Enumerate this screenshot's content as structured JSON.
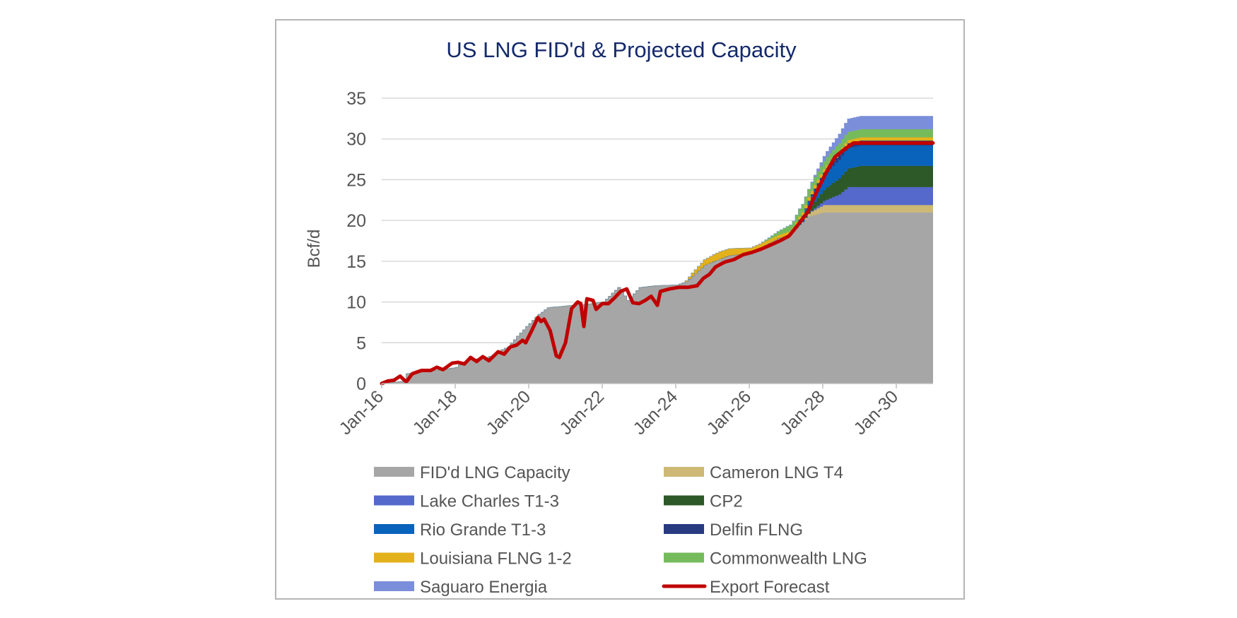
{
  "chart_data": {
    "type": "area",
    "title": "US LNG FID'd & Projected Capacity",
    "xlabel": "",
    "ylabel": "Bcf/d",
    "ylim": [
      0,
      35
    ],
    "yticks": [
      0,
      5,
      10,
      15,
      20,
      25,
      30,
      35
    ],
    "xlim": [
      "2016-01",
      "2031-01"
    ],
    "xtick_labels": [
      "Jan-16",
      "Jan-18",
      "Jan-20",
      "Jan-22",
      "Jan-24",
      "Jan-26",
      "Jan-28",
      "Jan-30"
    ],
    "grid": true,
    "legend_position": "bottom",
    "stacked_series": [
      {
        "name": "FID'd LNG Capacity",
        "color": "#a6a6a6",
        "points": [
          [
            "2016-01",
            0
          ],
          [
            "2016-08",
            0.3
          ],
          [
            "2016-09",
            1.2
          ],
          [
            "2017-03",
            1.5
          ],
          [
            "2017-09",
            1.7
          ],
          [
            "2018-01",
            2.0
          ],
          [
            "2018-03",
            2.6
          ],
          [
            "2018-07",
            3.0
          ],
          [
            "2018-11",
            3.2
          ],
          [
            "2019-01",
            3.5
          ],
          [
            "2019-03",
            4.0
          ],
          [
            "2019-06",
            4.5
          ],
          [
            "2019-09",
            5.8
          ],
          [
            "2019-12",
            7.0
          ],
          [
            "2020-04",
            8.5
          ],
          [
            "2020-07",
            9.3
          ],
          [
            "2020-12",
            9.5
          ],
          [
            "2021-07",
            9.7
          ],
          [
            "2022-01",
            10.0
          ],
          [
            "2022-06",
            11.8
          ],
          [
            "2022-09",
            10.2
          ],
          [
            "2023-01",
            11.8
          ],
          [
            "2023-06",
            12.0
          ],
          [
            "2024-01",
            12.1
          ],
          [
            "2024-04",
            12.5
          ],
          [
            "2024-07",
            13.5
          ],
          [
            "2024-10",
            14.5
          ],
          [
            "2025-01",
            15.0
          ],
          [
            "2025-06",
            15.7
          ],
          [
            "2026-01",
            16.0
          ],
          [
            "2026-06",
            17.0
          ],
          [
            "2026-10",
            17.8
          ],
          [
            "2027-02",
            18.3
          ],
          [
            "2027-05",
            19.5
          ],
          [
            "2027-08",
            20.5
          ],
          [
            "2028-01",
            21.0
          ],
          [
            "2031-01",
            21.0
          ]
        ]
      },
      {
        "name": "Cameron LNG T4",
        "color": "#cdb876",
        "points": [
          [
            "2016-01",
            0
          ],
          [
            "2027-06",
            0
          ],
          [
            "2027-09",
            0.5
          ],
          [
            "2028-01",
            0.9
          ],
          [
            "2031-01",
            0.9
          ]
        ]
      },
      {
        "name": "Lake Charles T1-3",
        "color": "#5568cc",
        "points": [
          [
            "2016-01",
            0
          ],
          [
            "2027-08",
            0
          ],
          [
            "2028-01",
            0.5
          ],
          [
            "2028-06",
            1.3
          ],
          [
            "2028-09",
            2.2
          ],
          [
            "2031-01",
            2.2
          ]
        ]
      },
      {
        "name": "CP2",
        "color": "#2d5828",
        "points": [
          [
            "2016-01",
            0
          ],
          [
            "2027-06",
            0
          ],
          [
            "2027-10",
            0.8
          ],
          [
            "2028-02",
            1.5
          ],
          [
            "2028-08",
            2.2
          ],
          [
            "2029-01",
            2.6
          ],
          [
            "2031-01",
            2.6
          ]
        ]
      },
      {
        "name": "Rio Grande T1-3",
        "color": "#0a63bb",
        "points": [
          [
            "2016-01",
            0
          ],
          [
            "2027-03",
            0
          ],
          [
            "2027-05",
            0.6
          ],
          [
            "2027-10",
            1.4
          ],
          [
            "2028-03",
            2.0
          ],
          [
            "2028-08",
            2.5
          ],
          [
            "2031-01",
            2.5
          ]
        ]
      },
      {
        "name": "Delfin FLNG",
        "color": "#283a80",
        "points": [
          [
            "2016-01",
            0
          ],
          [
            "2027-06",
            0
          ],
          [
            "2027-11",
            0.3
          ],
          [
            "2028-05",
            0.6
          ],
          [
            "2031-01",
            0.6
          ]
        ]
      },
      {
        "name": "Louisiana FLNG 1-2",
        "color": "#e3b11b",
        "points": [
          [
            "2016-01",
            0
          ],
          [
            "2024-03",
            0
          ],
          [
            "2024-06",
            0.4
          ],
          [
            "2024-10",
            0.7
          ],
          [
            "2025-03",
            0.9
          ],
          [
            "2025-08",
            0.8
          ],
          [
            "2026-05",
            0.5
          ],
          [
            "2026-10",
            0.4
          ],
          [
            "2027-06",
            0.4
          ],
          [
            "2031-01",
            0.4
          ]
        ]
      },
      {
        "name": "Commonwealth LNG",
        "color": "#75bb5c",
        "points": [
          [
            "2016-01",
            0
          ],
          [
            "2026-04",
            0
          ],
          [
            "2026-08",
            0.3
          ],
          [
            "2027-01",
            0.7
          ],
          [
            "2027-06",
            1.0
          ],
          [
            "2027-10",
            1.0
          ],
          [
            "2031-01",
            1.0
          ]
        ]
      },
      {
        "name": "Saguaro Energia",
        "color": "#7a8ed9",
        "points": [
          [
            "2016-01",
            0
          ],
          [
            "2027-08",
            0
          ],
          [
            "2028-01",
            0.6
          ],
          [
            "2028-05",
            1.0
          ],
          [
            "2028-09",
            1.6
          ],
          [
            "2031-01",
            1.6
          ]
        ]
      }
    ],
    "line_series": {
      "name": "Export Forecast",
      "color": "#c00000",
      "points": [
        [
          "2016-01",
          0.0
        ],
        [
          "2016-03",
          0.3
        ],
        [
          "2016-05",
          0.4
        ],
        [
          "2016-07",
          0.9
        ],
        [
          "2016-09",
          0.2
        ],
        [
          "2016-11",
          1.2
        ],
        [
          "2017-02",
          1.6
        ],
        [
          "2017-05",
          1.6
        ],
        [
          "2017-07",
          2.0
        ],
        [
          "2017-09",
          1.7
        ],
        [
          "2017-12",
          2.5
        ],
        [
          "2018-02",
          2.6
        ],
        [
          "2018-04",
          2.4
        ],
        [
          "2018-06",
          3.2
        ],
        [
          "2018-08",
          2.7
        ],
        [
          "2018-10",
          3.3
        ],
        [
          "2018-12",
          2.8
        ],
        [
          "2019-03",
          3.9
        ],
        [
          "2019-05",
          3.6
        ],
        [
          "2019-07",
          4.5
        ],
        [
          "2019-09",
          4.7
        ],
        [
          "2019-11",
          5.3
        ],
        [
          "2019-12",
          5.0
        ],
        [
          "2020-02",
          6.5
        ],
        [
          "2020-04",
          8.1
        ],
        [
          "2020-05",
          7.6
        ],
        [
          "2020-06",
          7.9
        ],
        [
          "2020-08",
          6.5
        ],
        [
          "2020-10",
          3.4
        ],
        [
          "2020-11",
          3.2
        ],
        [
          "2021-01",
          5.0
        ],
        [
          "2021-03",
          9.2
        ],
        [
          "2021-05",
          10.0
        ],
        [
          "2021-06",
          9.8
        ],
        [
          "2021-07",
          7.0
        ],
        [
          "2021-08",
          10.4
        ],
        [
          "2021-10",
          10.2
        ],
        [
          "2021-11",
          9.1
        ],
        [
          "2022-01",
          9.8
        ],
        [
          "2022-03",
          9.8
        ],
        [
          "2022-05",
          10.5
        ],
        [
          "2022-07",
          11.3
        ],
        [
          "2022-09",
          11.6
        ],
        [
          "2022-11",
          9.9
        ],
        [
          "2023-01",
          9.8
        ],
        [
          "2023-03",
          10.2
        ],
        [
          "2023-05",
          10.7
        ],
        [
          "2023-07",
          9.6
        ],
        [
          "2023-08",
          11.3
        ],
        [
          "2023-11",
          11.6
        ],
        [
          "2024-02",
          11.8
        ],
        [
          "2024-05",
          11.8
        ],
        [
          "2024-08",
          12.0
        ],
        [
          "2024-10",
          12.9
        ],
        [
          "2024-12",
          13.4
        ],
        [
          "2025-02",
          14.3
        ],
        [
          "2025-05",
          14.9
        ],
        [
          "2025-08",
          15.2
        ],
        [
          "2025-11",
          15.8
        ],
        [
          "2026-02",
          16.1
        ],
        [
          "2026-05",
          16.5
        ],
        [
          "2026-08",
          17.0
        ],
        [
          "2026-11",
          17.5
        ],
        [
          "2027-02",
          18.1
        ],
        [
          "2027-05",
          19.5
        ],
        [
          "2027-08",
          21.0
        ],
        [
          "2027-11",
          23.5
        ],
        [
          "2028-02",
          25.8
        ],
        [
          "2028-05",
          27.8
        ],
        [
          "2028-08",
          28.7
        ],
        [
          "2028-11",
          29.5
        ],
        [
          "2031-01",
          29.5
        ]
      ]
    }
  }
}
